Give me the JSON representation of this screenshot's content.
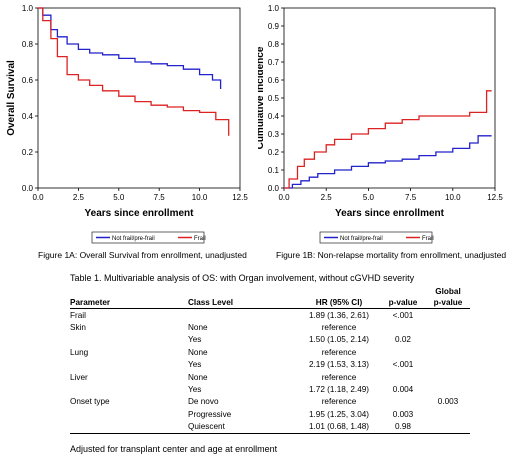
{
  "chart_data": [
    {
      "type": "line",
      "xlabel": "Years since enrollment",
      "ylabel": "Overall Survival",
      "xlim": [
        0,
        12.5
      ],
      "ylim": [
        0,
        1
      ],
      "xticks": [
        "0.0",
        "2.5",
        "5.0",
        "7.5",
        "10.0",
        "12.5"
      ],
      "yticks": [
        "0.0",
        "0.2",
        "0.4",
        "0.6",
        "0.8",
        "1.0"
      ],
      "grid": false,
      "legend_position": "bottom",
      "series": [
        {
          "name": "Not frail/pre-frail",
          "color": "#2222cc",
          "x": [
            0,
            0.3,
            0.8,
            1.2,
            1.8,
            2.5,
            3.2,
            4.0,
            5.0,
            6.0,
            7.0,
            8.0,
            9.0,
            10.0,
            10.8,
            11.3
          ],
          "y": [
            1.0,
            0.96,
            0.88,
            0.84,
            0.8,
            0.77,
            0.75,
            0.74,
            0.72,
            0.7,
            0.69,
            0.68,
            0.66,
            0.63,
            0.6,
            0.55
          ]
        },
        {
          "name": "Frail",
          "color": "#dd2222",
          "x": [
            0,
            0.3,
            0.8,
            1.2,
            1.8,
            2.5,
            3.2,
            4.0,
            5.0,
            6.0,
            7.0,
            8.0,
            9.0,
            10.0,
            11.0,
            11.7,
            11.8
          ],
          "y": [
            1.0,
            0.93,
            0.83,
            0.73,
            0.63,
            0.6,
            0.57,
            0.54,
            0.51,
            0.48,
            0.46,
            0.45,
            0.43,
            0.42,
            0.38,
            0.38,
            0.29
          ]
        }
      ],
      "caption": "Figure 1A: Overall Survival from enrollment, unadjusted"
    },
    {
      "type": "line",
      "xlabel": "Years since enrollment",
      "ylabel": "Cumulative incidence",
      "xlim": [
        0,
        12.5
      ],
      "ylim": [
        0,
        1
      ],
      "xticks": [
        "0.0",
        "2.5",
        "5.0",
        "7.5",
        "10.0",
        "12.5"
      ],
      "yticks": [
        "0.0",
        "0.1",
        "0.2",
        "0.3",
        "0.4",
        "0.5",
        "0.6",
        "0.7",
        "0.8",
        "0.9",
        "1.0"
      ],
      "grid": false,
      "legend_position": "bottom",
      "series": [
        {
          "name": "Not frail/pre-frail",
          "color": "#2222cc",
          "x": [
            0,
            0.5,
            1.0,
            1.5,
            2.0,
            3.0,
            4.0,
            5.0,
            6.0,
            7.0,
            8.0,
            9.0,
            10.0,
            11.0,
            11.5,
            12.3
          ],
          "y": [
            0.0,
            0.02,
            0.04,
            0.06,
            0.08,
            0.1,
            0.12,
            0.14,
            0.15,
            0.16,
            0.18,
            0.2,
            0.22,
            0.25,
            0.29,
            0.29
          ]
        },
        {
          "name": "Frail",
          "color": "#dd2222",
          "x": [
            0,
            0.3,
            0.8,
            1.2,
            1.8,
            2.5,
            3.0,
            4.0,
            5.0,
            6.0,
            7.0,
            8.0,
            9.0,
            10.0,
            11.0,
            11.8,
            12.0,
            12.3
          ],
          "y": [
            0.0,
            0.05,
            0.12,
            0.16,
            0.2,
            0.24,
            0.27,
            0.3,
            0.33,
            0.36,
            0.38,
            0.4,
            0.4,
            0.4,
            0.42,
            0.42,
            0.54,
            0.54
          ]
        }
      ],
      "caption": "Figure 1B: Non-relapse mortality from enrollment, unadjusted"
    }
  ],
  "table": {
    "title": "Table 1. Multivariable analysis of OS: with Organ involvement, without cGVHD severity",
    "headers": {
      "parameter": "Parameter",
      "class_level": "Class Level",
      "hr": "HR (95% CI)",
      "p": "p-value",
      "global_p": "Global\np-value"
    },
    "rows": [
      {
        "parameter": "Frail",
        "class_level": "",
        "hr": "1.89 (1.36, 2.61)",
        "p": "<.001",
        "global_p": ""
      },
      {
        "parameter": "Skin",
        "class_level": "None",
        "hr": "reference",
        "p": "",
        "global_p": ""
      },
      {
        "parameter": "",
        "class_level": "Yes",
        "hr": "1.50 (1.05, 2.14)",
        "p": "0.02",
        "global_p": ""
      },
      {
        "parameter": "Lung",
        "class_level": "None",
        "hr": "reference",
        "p": "",
        "global_p": ""
      },
      {
        "parameter": "",
        "class_level": "Yes",
        "hr": "2.19 (1.53, 3.13)",
        "p": "<.001",
        "global_p": ""
      },
      {
        "parameter": "Liver",
        "class_level": "None",
        "hr": "reference",
        "p": "",
        "global_p": ""
      },
      {
        "parameter": "",
        "class_level": "Yes",
        "hr": "1.72 (1.18, 2.49)",
        "p": "0.004",
        "global_p": ""
      },
      {
        "parameter": "Onset type",
        "class_level": "De novo",
        "hr": "reference",
        "p": "",
        "global_p": "0.003"
      },
      {
        "parameter": "",
        "class_level": "Progressive",
        "hr": "1.95 (1.25, 3.04)",
        "p": "0.003",
        "global_p": ""
      },
      {
        "parameter": "",
        "class_level": "Quiescent",
        "hr": "1.01 (0.68, 1.48)",
        "p": "0.98",
        "global_p": ""
      }
    ]
  },
  "footnote": "Adjusted for transplant center and age at enrollment"
}
